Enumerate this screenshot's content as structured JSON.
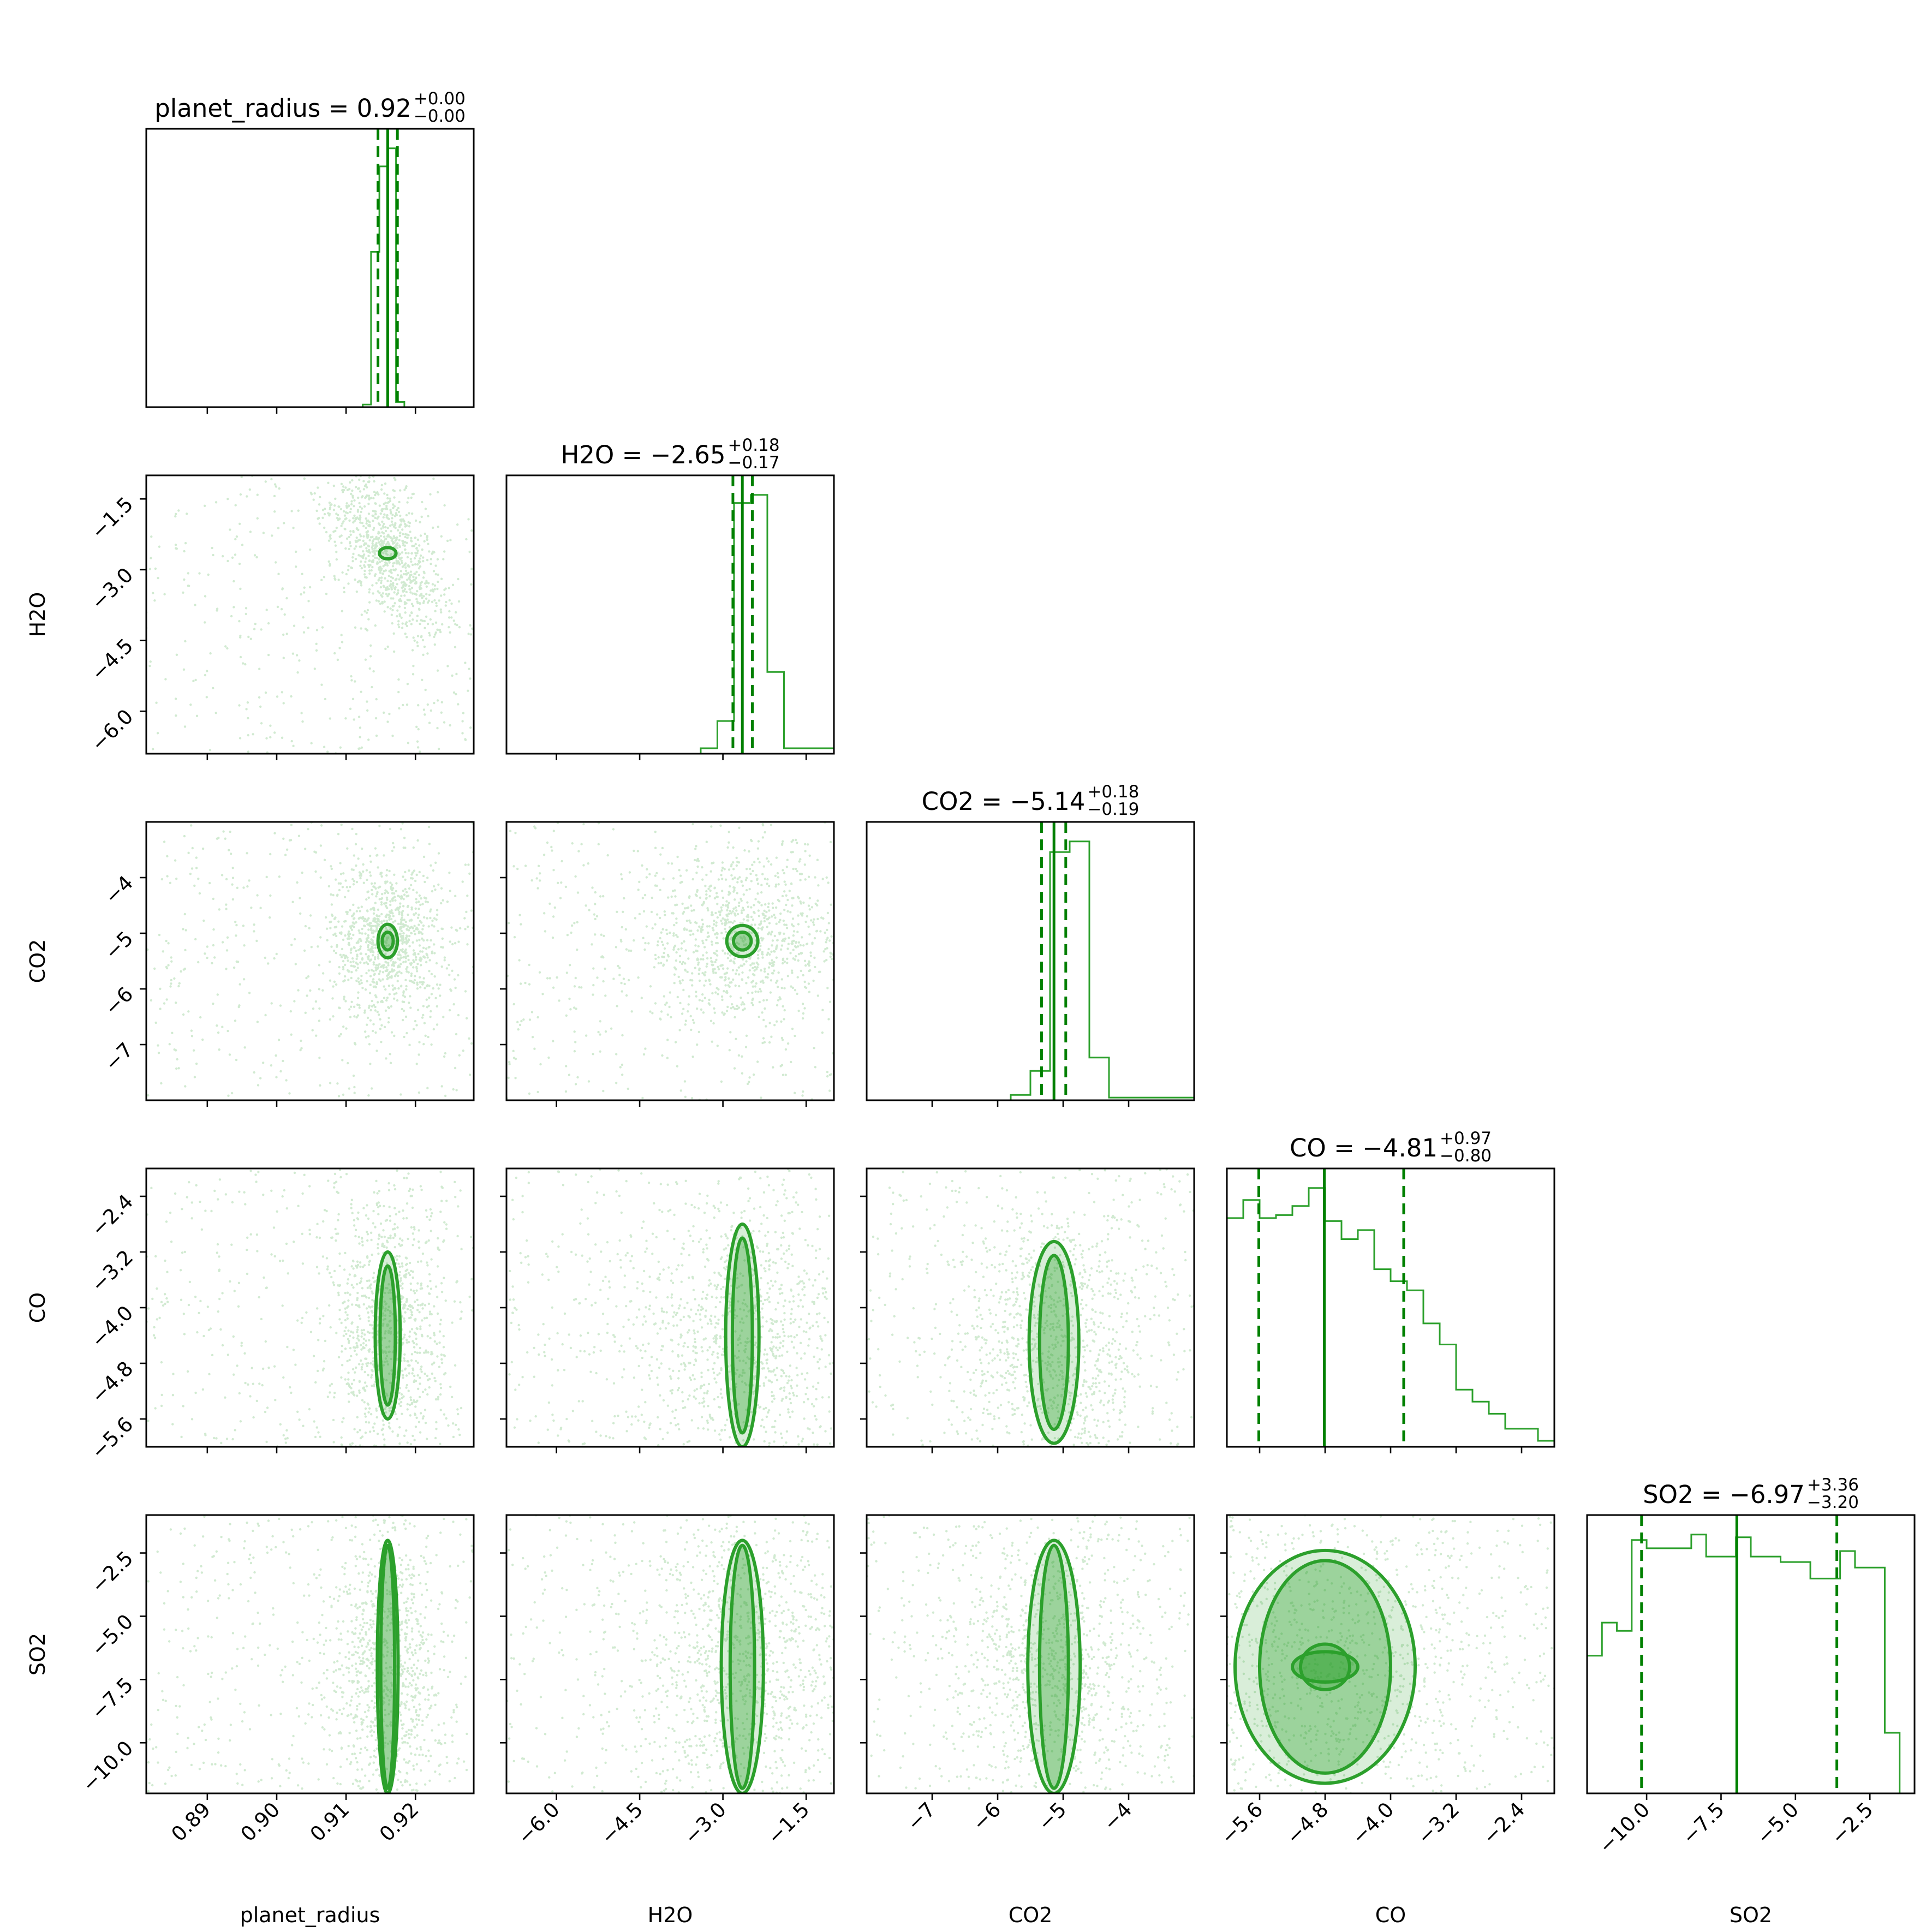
{
  "chart_data": {
    "type": "corner",
    "color": "#2ca02c",
    "quantile_color": "#008000",
    "parameters": [
      {
        "name": "planet_radius",
        "label": "planet_radius",
        "range": [
          0.8812,
          0.9284
        ],
        "ticks": [
          0.89,
          0.9,
          0.91,
          0.92
        ],
        "tick_labels": [
          "0.89",
          "0.90",
          "0.91",
          "0.92"
        ],
        "median": 0.916,
        "q16": 0.9146,
        "q84": 0.9174,
        "title": {
          "main": "planet_radius = 0.92",
          "sup": "+0.00",
          "sub": "−0.00"
        },
        "hist": {
          "edges": [
            0.8812,
            0.9124,
            0.9136,
            0.9148,
            0.916,
            0.9172,
            0.9184,
            0.9284
          ],
          "heights": [
            0.0,
            0.01,
            0.6,
            0.93,
            1.0,
            0.02,
            0.0
          ]
        }
      },
      {
        "name": "H2O",
        "label": "H2O",
        "range": [
          -6.9,
          -1.0
        ],
        "ticks": [
          -6.0,
          -4.5,
          -3.0,
          -1.5
        ],
        "tick_labels": [
          "−6.0",
          "−4.5",
          "−3.0",
          "−1.5"
        ],
        "median": -2.65,
        "q16": -2.82,
        "q84": -2.47,
        "title": {
          "main": "H2O = −2.65",
          "sup": "+0.18",
          "sub": "−0.17"
        },
        "hist": {
          "edges": [
            -6.9,
            -3.4,
            -3.1,
            -2.8,
            -2.5,
            -2.2,
            -1.9,
            -1.0
          ],
          "heights": [
            0.0,
            0.02,
            0.12,
            0.92,
            0.95,
            0.3,
            0.02
          ]
        }
      },
      {
        "name": "CO2",
        "label": "CO2",
        "range": [
          -8.0,
          -3.0
        ],
        "ticks": [
          -7,
          -6,
          -5,
          -4
        ],
        "tick_labels": [
          "−7",
          "−6",
          "−5",
          "−4"
        ],
        "median": -5.14,
        "q16": -5.33,
        "q84": -4.96,
        "title": {
          "main": "CO2 = −5.14",
          "sup": "+0.18",
          "sub": "−0.19"
        },
        "hist": {
          "edges": [
            -8.0,
            -5.8,
            -5.5,
            -5.2,
            -4.9,
            -4.6,
            -4.3,
            -3.0
          ],
          "heights": [
            0.0,
            0.02,
            0.11,
            0.93,
            0.97,
            0.16,
            0.01
          ]
        }
      },
      {
        "name": "CO",
        "label": "CO",
        "range": [
          -6.0,
          -2.0
        ],
        "ticks": [
          -5.6,
          -4.8,
          -4.0,
          -3.2,
          -2.4
        ],
        "tick_labels": [
          "−5.6",
          "−4.8",
          "−4.0",
          "−3.2",
          "−2.4"
        ],
        "median": -4.81,
        "q16": -5.61,
        "q84": -3.84,
        "title": {
          "main": "CO = −4.81",
          "sup": "+0.97",
          "sub": "−0.80"
        },
        "hist": {
          "edges": [
            -6.0,
            -5.8,
            -5.6,
            -5.4,
            -5.2,
            -5.0,
            -4.8,
            -4.6,
            -4.4,
            -4.2,
            -4.0,
            -3.8,
            -3.6,
            -3.4,
            -3.2,
            -3.0,
            -2.8,
            -2.6,
            -2.4,
            -2.2,
            -2.0
          ],
          "heights": [
            0.76,
            0.82,
            0.76,
            0.77,
            0.8,
            0.86,
            0.75,
            0.69,
            0.72,
            0.59,
            0.55,
            0.52,
            0.41,
            0.34,
            0.19,
            0.15,
            0.11,
            0.06,
            0.06,
            0.02
          ]
        }
      },
      {
        "name": "SO2",
        "label": "SO2",
        "range": [
          -12.0,
          -1.0
        ],
        "ticks": [
          -10.0,
          -7.5,
          -5.0,
          -2.5
        ],
        "tick_labels": [
          "−10.0",
          "−7.5",
          "−5.0",
          "−2.5"
        ],
        "median": -6.97,
        "q16": -10.17,
        "q84": -3.61,
        "title": {
          "main": "SO2 = −6.97",
          "sup": "+3.36",
          "sub": "−3.20"
        },
        "hist": {
          "edges": [
            -12.0,
            -11.5,
            -11.0,
            -10.5,
            -10.0,
            -9.5,
            -9.0,
            -8.5,
            -8.0,
            -7.5,
            -7.0,
            -6.5,
            -6.0,
            -5.5,
            -5.0,
            -4.5,
            -4.0,
            -3.5,
            -3.0,
            -2.5,
            -2.0,
            -1.5,
            -1.0
          ],
          "heights": [
            0.5,
            0.62,
            0.59,
            0.92,
            0.89,
            0.89,
            0.89,
            0.94,
            0.86,
            0.86,
            0.93,
            0.86,
            0.86,
            0.84,
            0.84,
            0.78,
            0.78,
            0.88,
            0.82,
            0.82,
            0.22,
            0.0
          ]
        }
      }
    ],
    "pair_panels": [
      {
        "x": "planet_radius",
        "y": "H2O",
        "corr": -0.6,
        "spread": [
          0.004,
          0.9
        ],
        "center": [
          0.916,
          -2.65
        ],
        "contours": [
          [
            0.0012,
            0.12
          ]
        ]
      },
      {
        "x": "planet_radius",
        "y": "CO2",
        "corr": 0.0,
        "spread": [
          0.004,
          0.7
        ],
        "center": [
          0.916,
          -5.14
        ],
        "contours": [
          [
            0.0014,
            0.3
          ],
          [
            0.0008,
            0.16
          ]
        ]
      },
      {
        "x": "H2O",
        "y": "CO2",
        "corr": 0.0,
        "spread": [
          1.0,
          0.7
        ],
        "center": [
          -2.65,
          -5.14
        ],
        "contours": [
          [
            0.28,
            0.28
          ],
          [
            0.16,
            0.16
          ]
        ]
      },
      {
        "x": "planet_radius",
        "y": "CO",
        "corr": 0.0,
        "spread": [
          0.004,
          1.0
        ],
        "center": [
          0.916,
          -4.4
        ],
        "contours": [
          [
            0.0018,
            1.2
          ],
          [
            0.0011,
            1.0
          ]
        ]
      },
      {
        "x": "H2O",
        "y": "CO",
        "corr": 0.0,
        "spread": [
          1.0,
          1.0
        ],
        "center": [
          -2.65,
          -4.4
        ],
        "contours": [
          [
            0.3,
            1.6
          ],
          [
            0.18,
            1.4
          ]
        ]
      },
      {
        "x": "CO2",
        "y": "CO",
        "corr": 0.0,
        "spread": [
          0.7,
          1.0
        ],
        "center": [
          -5.14,
          -4.5
        ],
        "contours": [
          [
            0.38,
            1.45
          ],
          [
            0.22,
            1.25
          ]
        ]
      },
      {
        "x": "planet_radius",
        "y": "SO2",
        "corr": 0.0,
        "spread": [
          0.004,
          3.0
        ],
        "center": [
          0.916,
          -7.0
        ],
        "contours": [
          [
            0.0015,
            5.0
          ],
          [
            0.001,
            4.8
          ]
        ]
      },
      {
        "x": "H2O",
        "y": "SO2",
        "corr": 0.0,
        "spread": [
          1.0,
          3.0
        ],
        "center": [
          -2.65,
          -7.0
        ],
        "contours": [
          [
            0.38,
            5.0
          ],
          [
            0.22,
            4.8
          ]
        ]
      },
      {
        "x": "CO2",
        "y": "SO2",
        "corr": 0.0,
        "spread": [
          0.7,
          3.0
        ],
        "center": [
          -5.14,
          -7.0
        ],
        "contours": [
          [
            0.4,
            5.0
          ],
          [
            0.22,
            4.8
          ]
        ]
      },
      {
        "x": "CO",
        "y": "SO2",
        "corr": 0.0,
        "spread": [
          1.2,
          3.0
        ],
        "center": [
          -4.8,
          -7.0
        ],
        "contours": [
          [
            1.1,
            4.6
          ],
          [
            0.8,
            4.2
          ],
          [
            0.4,
            0.6
          ],
          [
            0.3,
            0.9
          ]
        ]
      }
    ]
  }
}
